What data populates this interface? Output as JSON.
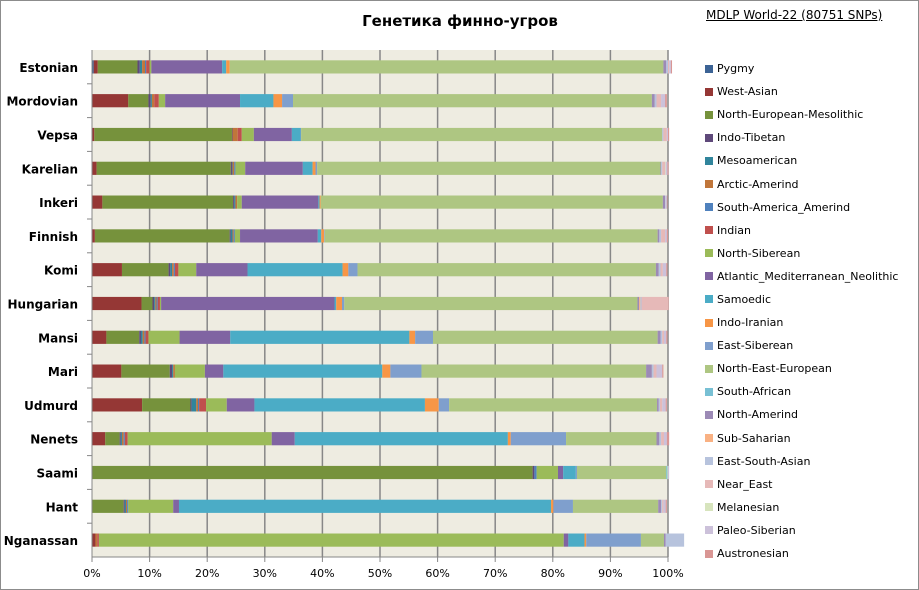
{
  "chart_data": {
    "type": "bar",
    "orientation": "horizontal",
    "stacked": "percent",
    "title": "Генетика финно-угров",
    "subtitle": "MDLP World-22 (80751 SNPs)",
    "xlabel": "",
    "ylabel": "",
    "xlim": [
      0,
      100
    ],
    "x_ticks": [
      "0%",
      "10%",
      "20%",
      "30%",
      "40%",
      "50%",
      "60%",
      "70%",
      "80%",
      "90%",
      "100%"
    ],
    "grid": "vertical",
    "legend": "right",
    "categories": [
      "Estonian",
      "Mordovian",
      "Vepsa",
      "Karelian",
      "Inkeri",
      "Finnish",
      "Komi",
      "Hungarian",
      "Mansi",
      "Mari",
      "Udmurd",
      "Nenets",
      "Saami",
      "Hant",
      "Nganassan"
    ],
    "series": [
      {
        "name": "Pygmy",
        "color": "#3c6395",
        "values": [
          0.3,
          0,
          0,
          0,
          0,
          0,
          0,
          0,
          0,
          0,
          0,
          0,
          0,
          0,
          0
        ]
      },
      {
        "name": "West-Asian",
        "color": "#953735",
        "values": [
          0.7,
          6.3,
          0.4,
          0.8,
          1.8,
          0.5,
          5.2,
          8.6,
          2.5,
          5.1,
          8.7,
          2.3,
          0,
          0,
          0.6
        ]
      },
      {
        "name": "North-European-Mesolithic",
        "color": "#76923c",
        "values": [
          6.9,
          3.5,
          23.9,
          23.3,
          22.7,
          23.4,
          8.1,
          1.9,
          5.7,
          8.4,
          8.4,
          2.5,
          76.5,
          5.5,
          0
        ]
      },
      {
        "name": "Indo-Tibetan",
        "color": "#5f497a",
        "values": [
          0.4,
          0.4,
          0.1,
          0.2,
          0.2,
          0.2,
          0.3,
          0.3,
          0.3,
          0.4,
          0.2,
          0.2,
          0.3,
          0.2,
          0
        ]
      },
      {
        "name": "Mesoamerican",
        "color": "#31859c",
        "values": [
          0.4,
          0.2,
          0,
          0.1,
          0.2,
          0.3,
          0.3,
          0.2,
          0.3,
          0.2,
          0.8,
          0.2,
          0,
          0.2,
          0
        ]
      },
      {
        "name": "Arctic-Amerind",
        "color": "#c0763a",
        "values": [
          0.5,
          0.4,
          0.9,
          0.3,
          0.3,
          0.2,
          0.3,
          0.2,
          0.3,
          0.3,
          0.3,
          0.3,
          0,
          0.2,
          0.3
        ]
      },
      {
        "name": "South-America_Amerind",
        "color": "#4f81bd",
        "values": [
          0.2,
          0,
          0,
          0.2,
          0,
          0.2,
          0.2,
          0.2,
          0.2,
          0,
          0.2,
          0.2,
          0.4,
          0.2,
          0
        ]
      },
      {
        "name": "Indian",
        "color": "#c0504d",
        "values": [
          0.6,
          0.8,
          0.7,
          0,
          0,
          0,
          0.6,
          0.4,
          0.5,
          0,
          1.2,
          0.5,
          0,
          0,
          0.3
        ]
      },
      {
        "name": "North-Siberean",
        "color": "#9bbb59",
        "values": [
          0.3,
          1.1,
          2.1,
          1.7,
          0.8,
          0.9,
          3.1,
          0.2,
          5.4,
          5.2,
          3.6,
          25.0,
          3.7,
          7.8,
          80.7
        ]
      },
      {
        "name": "Atlantic_Mediterranean_Neolithic",
        "color": "#8064a2",
        "values": [
          12.3,
          13.0,
          6.6,
          10.0,
          13.3,
          13.5,
          8.9,
          30.1,
          8.8,
          3.2,
          4.8,
          4.0,
          0.9,
          1.0,
          0.8
        ]
      },
      {
        "name": "Samoedic",
        "color": "#4bacc6",
        "values": [
          0.7,
          5.8,
          1.5,
          1.7,
          0.2,
          0.6,
          16.5,
          0.3,
          31.1,
          27.6,
          29.6,
          37.0,
          2.2,
          64.6,
          2.8
        ]
      },
      {
        "name": "Indo-Iranian",
        "color": "#f79646",
        "values": [
          0.6,
          1.5,
          0,
          0.5,
          0.2,
          0.5,
          1.0,
          1.0,
          1.0,
          1.4,
          2.4,
          0.5,
          0,
          0.4,
          0.3
        ]
      },
      {
        "name": "East-Siberean",
        "color": "#7f9fcd",
        "values": [
          0,
          1.9,
          0.1,
          0.3,
          0,
          0.1,
          1.6,
          0.4,
          3.1,
          5.4,
          1.8,
          9.6,
          0.2,
          3.4,
          9.5
        ]
      },
      {
        "name": "North-East-European",
        "color": "#aec682",
        "values": [
          75.3,
          62.3,
          62.7,
          59.6,
          59.4,
          57.8,
          51.8,
          50.9,
          39.0,
          39.0,
          36.1,
          15.7,
          15.5,
          14.8,
          4.0
        ]
      },
      {
        "name": "South-African",
        "color": "#78c0d4",
        "values": [
          0,
          0,
          0,
          0,
          0,
          0,
          0,
          0,
          0,
          0,
          0,
          0,
          0.2,
          0,
          0
        ]
      },
      {
        "name": "North-Amerind",
        "color": "#9c8ab6",
        "values": [
          0.5,
          0.5,
          0,
          0.1,
          0.4,
          0.3,
          0.5,
          0.3,
          0.5,
          1.0,
          0.3,
          0.5,
          0,
          0.5,
          0.3
        ]
      },
      {
        "name": "Sub-Saharian",
        "color": "#f9b183",
        "values": [
          0,
          0,
          0,
          0,
          0,
          0,
          0,
          0.2,
          0,
          0,
          0,
          0,
          0,
          0,
          0
        ]
      },
      {
        "name": "East-South-Asian",
        "color": "#b7c3dd",
        "values": [
          0.3,
          0.3,
          0.2,
          0.2,
          0.1,
          0.3,
          0.3,
          0.2,
          0.3,
          0.3,
          0.2,
          0.3,
          0,
          0.2,
          3.2
        ]
      },
      {
        "name": "Near_East",
        "color": "#e6b9b8",
        "values": [
          0.2,
          0.8,
          0.6,
          0.5,
          0,
          0.7,
          0.4,
          4.6,
          0.3,
          0.5,
          0.4,
          0.5,
          0,
          0.2,
          0
        ]
      },
      {
        "name": "Melanesian",
        "color": "#d7e4bd",
        "values": [
          0,
          0,
          0,
          0.1,
          0,
          0,
          0,
          0,
          0,
          0,
          0,
          0,
          0.1,
          0,
          0
        ]
      },
      {
        "name": "Paleo-Siberian",
        "color": "#ccc1da",
        "values": [
          0.3,
          0.7,
          0.2,
          0.3,
          0.2,
          0.3,
          0.6,
          0,
          0.4,
          1.0,
          0.6,
          0.5,
          0.2,
          0.4,
          0
        ]
      },
      {
        "name": "Austronesian",
        "color": "#d99694",
        "values": [
          0.2,
          0.3,
          0.2,
          0.2,
          0.1,
          0.2,
          0.2,
          0.1,
          0.2,
          0.2,
          0.2,
          0.4,
          0,
          0.2,
          0
        ]
      }
    ]
  }
}
